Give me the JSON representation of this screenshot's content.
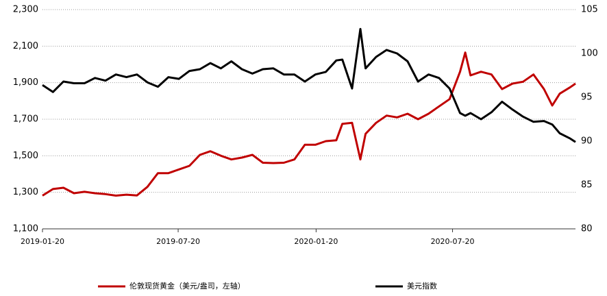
{
  "chart_data": {
    "type": "line",
    "x": [
      "2019-01-20",
      "2019-02-03",
      "2019-02-17",
      "2019-03-03",
      "2019-03-17",
      "2019-03-31",
      "2019-04-14",
      "2019-04-28",
      "2019-05-12",
      "2019-05-26",
      "2019-06-09",
      "2019-06-23",
      "2019-07-07",
      "2019-07-21",
      "2019-08-04",
      "2019-08-18",
      "2019-09-01",
      "2019-09-15",
      "2019-09-29",
      "2019-10-13",
      "2019-10-27",
      "2019-11-10",
      "2019-11-24",
      "2019-12-08",
      "2019-12-22",
      "2020-01-05",
      "2020-01-19",
      "2020-02-02",
      "2020-02-16",
      "2020-02-24",
      "2020-03-08",
      "2020-03-19",
      "2020-03-26",
      "2020-04-09",
      "2020-04-23",
      "2020-05-07",
      "2020-05-21",
      "2020-06-04",
      "2020-06-18",
      "2020-07-02",
      "2020-07-16",
      "2020-07-30",
      "2020-08-06",
      "2020-08-13",
      "2020-08-27",
      "2020-09-10",
      "2020-09-24",
      "2020-10-08",
      "2020-10-22",
      "2020-11-05",
      "2020-11-19",
      "2020-11-30",
      "2020-12-10",
      "2020-12-24",
      "2020-12-31"
    ],
    "xlim": [
      "2019-01-20",
      "2020-12-31"
    ],
    "xticks": [
      "2019-01-20",
      "2019-07-20",
      "2020-01-20",
      "2020-07-20"
    ],
    "ylim": [
      1100,
      2300
    ],
    "yticks": [
      {
        "value": 1100,
        "label": "1,100"
      },
      {
        "value": 1300,
        "label": "1,300"
      },
      {
        "value": 1500,
        "label": "1,500"
      },
      {
        "value": 1700,
        "label": "1,700"
      },
      {
        "value": 1900,
        "label": "1,900"
      },
      {
        "value": 2100,
        "label": "2,100"
      },
      {
        "value": 2300,
        "label": "2,300"
      }
    ],
    "y2lim": [
      80,
      105
    ],
    "y2ticks": [
      80,
      85,
      90,
      95,
      100,
      105
    ],
    "grid": true,
    "legend": "bottom",
    "series": [
      {
        "name": "伦敦现货黄金（美元/盎司，左轴）",
        "color": "#c00000",
        "values": [
          1282,
          1318,
          1325,
          1295,
          1303,
          1295,
          1290,
          1282,
          1287,
          1283,
          1330,
          1405,
          1405,
          1425,
          1445,
          1505,
          1525,
          1500,
          1480,
          1490,
          1505,
          1462,
          1460,
          1462,
          1480,
          1560,
          1560,
          1580,
          1585,
          1675,
          1680,
          1480,
          1620,
          1680,
          1720,
          1710,
          1730,
          1700,
          1730,
          1770,
          1810,
          1960,
          2065,
          1940,
          1960,
          1945,
          1865,
          1895,
          1905,
          1945,
          1865,
          1775,
          1840,
          1875,
          1895
        ]
      },
      {
        "name": "美元指数",
        "color": "#000000",
        "axis": "y2",
        "values": [
          96.4,
          95.6,
          96.8,
          96.6,
          96.6,
          97.2,
          96.9,
          97.6,
          97.3,
          97.6,
          96.7,
          96.2,
          97.3,
          97.1,
          98.0,
          98.2,
          98.9,
          98.3,
          99.1,
          98.2,
          97.7,
          98.2,
          98.3,
          97.6,
          97.6,
          96.8,
          97.6,
          97.9,
          99.2,
          99.3,
          96.0,
          102.8,
          98.3,
          99.6,
          100.4,
          100.0,
          99.1,
          96.8,
          97.6,
          97.2,
          96.0,
          93.2,
          92.9,
          93.2,
          92.5,
          93.3,
          94.5,
          93.6,
          92.8,
          92.2,
          92.3,
          91.9,
          90.9,
          90.3,
          89.9
        ]
      }
    ]
  }
}
